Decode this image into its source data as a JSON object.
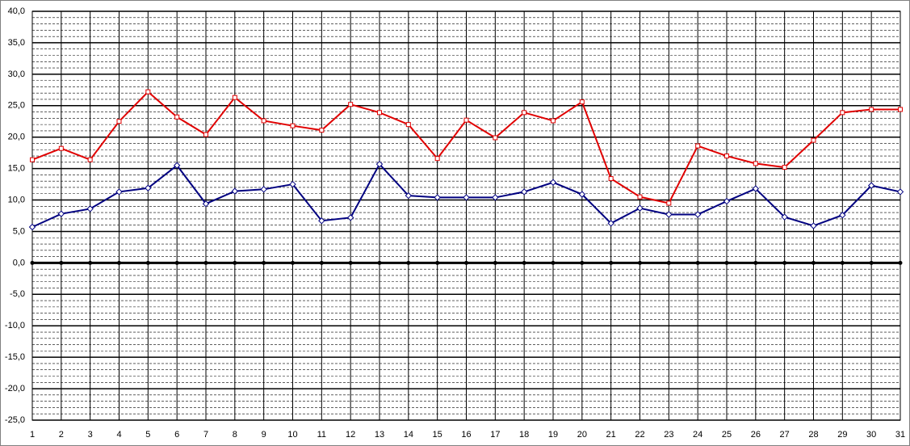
{
  "chart_data": {
    "type": "line",
    "categories": [
      "1",
      "2",
      "3",
      "4",
      "5",
      "6",
      "7",
      "8",
      "9",
      "10",
      "11",
      "12",
      "13",
      "14",
      "15",
      "16",
      "17",
      "18",
      "19",
      "20",
      "21",
      "22",
      "23",
      "24",
      "25",
      "26",
      "27",
      "28",
      "29",
      "30",
      "31"
    ],
    "series": [
      {
        "color": "#e00000",
        "marker": "square",
        "values": [
          16.4,
          18.2,
          16.4,
          22.5,
          27.2,
          23.2,
          20.4,
          26.3,
          22.6,
          21.8,
          21.1,
          25.2,
          23.9,
          22.0,
          16.6,
          22.7,
          19.9,
          23.9,
          22.6,
          25.6,
          13.4,
          10.5,
          9.5,
          18.6,
          17.0,
          15.8,
          15.2,
          19.5,
          23.9,
          24.4,
          24.4
        ]
      },
      {
        "color": "#000080",
        "marker": "diamond",
        "values": [
          5.7,
          7.8,
          8.6,
          11.3,
          11.9,
          15.5,
          9.4,
          11.4,
          11.7,
          12.5,
          6.7,
          7.2,
          15.7,
          10.7,
          10.4,
          10.4,
          10.4,
          11.3,
          12.8,
          10.9,
          6.3,
          8.7,
          7.7,
          7.7,
          9.8,
          11.8,
          7.3,
          5.9,
          7.6,
          12.3,
          11.3
        ]
      }
    ],
    "ylim": [
      -25,
      40
    ],
    "yticks": [
      {
        "value": -25,
        "label": "-25,0"
      },
      {
        "value": -20,
        "label": "-20,0"
      },
      {
        "value": -15,
        "label": "-15,0"
      },
      {
        "value": -10,
        "label": "-10,0"
      },
      {
        "value": -5,
        "label": "-5,0"
      },
      {
        "value": 0,
        "label": "0,0"
      },
      {
        "value": 5,
        "label": "5,0"
      },
      {
        "value": 10,
        "label": "10,0"
      },
      {
        "value": 15,
        "label": "15,0"
      },
      {
        "value": 20,
        "label": "20,0"
      },
      {
        "value": 25,
        "label": "25,0"
      },
      {
        "value": 30,
        "label": "30,0"
      },
      {
        "value": 35,
        "label": "35,0"
      },
      {
        "value": 40,
        "label": "40,0"
      }
    ],
    "grid": true,
    "minor_grid": true
  }
}
